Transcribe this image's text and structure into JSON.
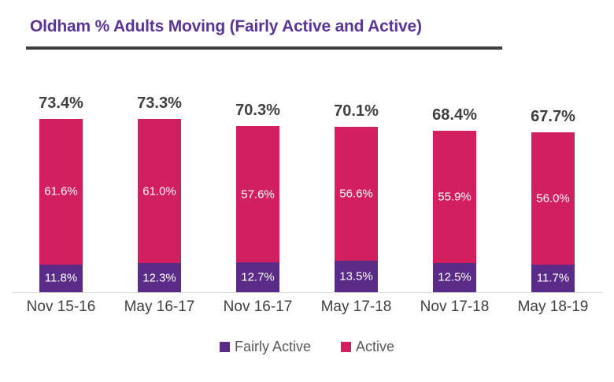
{
  "title": "Oldham % Adults Moving (Fairly Active and Active)",
  "colors": {
    "title_text": "#5A3596",
    "title_underline": "#404040",
    "fairly_active": "#5B2C87",
    "active": "#D21F5F",
    "total_label": "#3F3F3F",
    "axis_label": "#404040",
    "legend_text": "#595959",
    "baseline": "#D9D9D9",
    "segment_label": "#FFFFFF"
  },
  "chart_data": {
    "type": "bar",
    "stacked": true,
    "title": "Oldham % Adults Moving (Fairly Active and Active)",
    "categories": [
      "Nov 15-16",
      "May 16-17",
      "Nov 16-17",
      "May 17-18",
      "Nov 17-18",
      "May 18-19"
    ],
    "series": [
      {
        "name": "Fairly Active",
        "color": "#5B2C87",
        "values": [
          11.8,
          12.3,
          12.7,
          13.5,
          12.5,
          11.7
        ],
        "labels": [
          "11.8%",
          "12.3%",
          "12.7%",
          "13.5%",
          "12.5%",
          "11.7%"
        ]
      },
      {
        "name": "Active",
        "color": "#D21F5F",
        "values": [
          61.6,
          61.0,
          57.6,
          56.6,
          55.9,
          56.0
        ],
        "labels": [
          "61.6%",
          "61.0%",
          "57.6%",
          "56.6%",
          "55.9%",
          "56.0%"
        ]
      }
    ],
    "totals": [
      73.4,
      73.3,
      70.3,
      70.1,
      68.4,
      67.7
    ],
    "total_labels": [
      "73.4%",
      "73.3%",
      "70.3%",
      "70.1%",
      "68.4%",
      "67.7%"
    ],
    "xlabel": "",
    "ylabel": "",
    "ylim": [
      0,
      80
    ],
    "grid": false,
    "legend_position": "bottom"
  },
  "legend": {
    "items": [
      {
        "label": "Fairly Active",
        "color": "#5B2C87"
      },
      {
        "label": "Active",
        "color": "#D21F5F"
      }
    ]
  }
}
